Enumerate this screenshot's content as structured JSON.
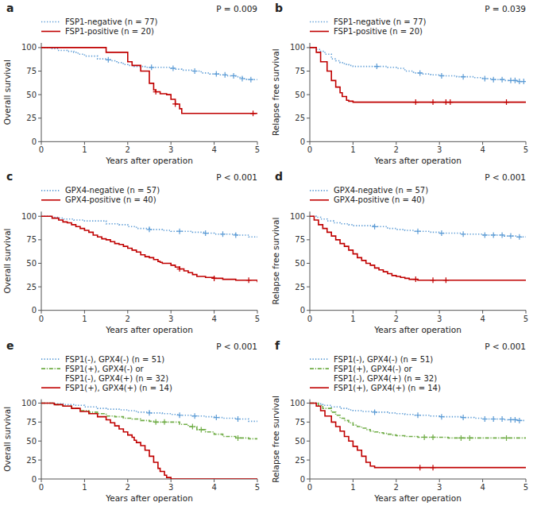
{
  "chart_data": [
    {
      "type": "step",
      "title": "a",
      "y_label": "Overall survival",
      "x_label": "Years after operation",
      "annotation": "P = 0.009",
      "xlim": [
        0,
        5
      ],
      "ylim": [
        0,
        105
      ],
      "xticks": [
        0,
        1,
        2,
        3,
        4,
        5
      ],
      "yticks": [
        0,
        25,
        50,
        75,
        100
      ],
      "grid": false,
      "legend": "top",
      "series": [
        {
          "name": "FSP1-negative (n = 77)",
          "color": "#5B9BD5",
          "line_style": "dotted",
          "x": [
            0,
            0.25,
            0.4,
            0.6,
            0.75,
            0.85,
            1.0,
            1.3,
            1.5,
            1.6,
            1.7,
            1.75,
            1.85,
            1.9,
            2.0,
            2.1,
            2.15,
            2.2,
            2.25,
            2.4,
            2.6,
            2.75,
            3.0,
            3.1,
            3.25,
            3.5,
            3.7,
            3.9,
            4.0,
            4.1,
            4.15,
            4.3,
            4.4,
            4.5,
            4.6,
            4.65,
            4.75,
            5.0
          ],
          "values": [
            100,
            99,
            97,
            96,
            95,
            93,
            91,
            88,
            87,
            86,
            85,
            84,
            83,
            82,
            81,
            81,
            80,
            80,
            80,
            79,
            79,
            79,
            78,
            77,
            76,
            75,
            73,
            72,
            72,
            71,
            71,
            70,
            70,
            69,
            68,
            67,
            66,
            65
          ],
          "censors": [
            1.55,
            2.55,
            3.05,
            3.55,
            4.05,
            4.25,
            4.45,
            4.65,
            4.85
          ]
        },
        {
          "name": "FSP1-positive (n = 20)",
          "color": "#C00000",
          "line_style": "solid",
          "x": [
            0,
            0.5,
            1.0,
            1.5,
            2.0,
            2.1,
            2.3,
            2.5,
            2.6,
            2.65,
            2.75,
            2.9,
            3.0,
            3.1,
            3.2,
            3.25,
            3.35,
            5.0
          ],
          "values": [
            100,
            100,
            100,
            95,
            85,
            81,
            75,
            62,
            55,
            53,
            51,
            50,
            45,
            40,
            35,
            30,
            30,
            30
          ],
          "censors": [
            2.65,
            3.1,
            4.9
          ]
        }
      ]
    },
    {
      "type": "step",
      "title": "b",
      "y_label": "Relapse free survival",
      "x_label": "Years after operation",
      "annotation": "P = 0.039",
      "xlim": [
        0,
        5
      ],
      "ylim": [
        0,
        105
      ],
      "xticks": [
        0,
        1,
        2,
        3,
        4,
        5
      ],
      "yticks": [
        0,
        25,
        50,
        75,
        100
      ],
      "grid": false,
      "legend": "top",
      "series": [
        {
          "name": "FSP1-negative (n = 77)",
          "color": "#5B9BD5",
          "line_style": "dotted",
          "x": [
            0,
            0.15,
            0.25,
            0.35,
            0.5,
            0.6,
            0.7,
            0.8,
            0.85,
            0.9,
            1.0,
            1.5,
            1.8,
            2.0,
            2.2,
            2.4,
            2.6,
            2.8,
            3.0,
            3.2,
            3.4,
            3.8,
            4.0,
            4.2,
            4.5,
            4.8,
            5.0
          ],
          "values": [
            100,
            98,
            96,
            93,
            88,
            86,
            84,
            83,
            82,
            81,
            80,
            80,
            79,
            78,
            75,
            73,
            72,
            71,
            70,
            70,
            69,
            68,
            67,
            66,
            65,
            64,
            64
          ],
          "censors": [
            1.55,
            2.55,
            3.05,
            3.55,
            4.05,
            4.25,
            4.45,
            4.65,
            4.75,
            4.85,
            4.95
          ]
        },
        {
          "name": "FSP1-positive (n = 20)",
          "color": "#C00000",
          "line_style": "solid",
          "x": [
            0,
            0.15,
            0.25,
            0.4,
            0.5,
            0.6,
            0.7,
            0.75,
            0.85,
            0.9,
            1.0,
            5.0
          ],
          "values": [
            100,
            95,
            85,
            75,
            65,
            58,
            52,
            48,
            44,
            43,
            42,
            42
          ],
          "censors": [
            2.45,
            2.85,
            3.15,
            3.25,
            4.55
          ]
        }
      ]
    },
    {
      "type": "step",
      "title": "c",
      "y_label": "Overall survival",
      "x_label": "Years after operation",
      "annotation": "P < 0.001",
      "xlim": [
        0,
        5
      ],
      "ylim": [
        0,
        105
      ],
      "xticks": [
        0,
        1,
        2,
        3,
        4,
        5
      ],
      "yticks": [
        0,
        25,
        50,
        75,
        100
      ],
      "grid": false,
      "legend": "top",
      "series": [
        {
          "name": "GPX4-negative (n = 57)",
          "color": "#5B9BD5",
          "line_style": "dotted",
          "x": [
            0,
            0.25,
            0.4,
            0.5,
            0.75,
            1.0,
            1.5,
            1.8,
            2.0,
            2.2,
            2.5,
            2.8,
            3.0,
            3.2,
            3.5,
            3.8,
            4.0,
            4.2,
            4.5,
            4.8,
            5.0
          ],
          "values": [
            100,
            99,
            98,
            97,
            96,
            95,
            92,
            91,
            89,
            87,
            86,
            85,
            84,
            84,
            83,
            82,
            81,
            81,
            80,
            78,
            77
          ],
          "censors": [
            2.5,
            3.2,
            3.8,
            4.2,
            4.5
          ]
        },
        {
          "name": "GPX4-positive (n = 40)",
          "color": "#C00000",
          "line_style": "solid",
          "x": [
            0,
            0.25,
            0.4,
            0.5,
            0.6,
            0.7,
            0.8,
            0.9,
            1.0,
            1.1,
            1.2,
            1.3,
            1.4,
            1.5,
            1.6,
            1.7,
            1.8,
            1.9,
            2.0,
            2.1,
            2.2,
            2.3,
            2.4,
            2.5,
            2.6,
            2.7,
            2.75,
            2.8,
            3.0,
            3.1,
            3.2,
            3.3,
            3.4,
            3.5,
            3.6,
            3.8,
            4.0,
            4.2,
            4.5,
            5.0
          ],
          "values": [
            100,
            98,
            96,
            94,
            93,
            91,
            89,
            87,
            85,
            83,
            80,
            78,
            76,
            75,
            73,
            71,
            70,
            68,
            66,
            64,
            62,
            59,
            57,
            56,
            54,
            52,
            51,
            50,
            48,
            46,
            44,
            42,
            40,
            38,
            36,
            35,
            34,
            33,
            32,
            30
          ],
          "censors": [
            3.2,
            4.0,
            4.8
          ]
        }
      ]
    },
    {
      "type": "step",
      "title": "d",
      "y_label": "Relapse free survival",
      "x_label": "Years after operation",
      "annotation": "P < 0.001",
      "xlim": [
        0,
        5
      ],
      "ylim": [
        0,
        105
      ],
      "xticks": [
        0,
        1,
        2,
        3,
        4,
        5
      ],
      "yticks": [
        0,
        25,
        50,
        75,
        100
      ],
      "grid": false,
      "legend": "top",
      "series": [
        {
          "name": "GPX4-negative (n = 57)",
          "color": "#5B9BD5",
          "line_style": "dotted",
          "x": [
            0,
            0.15,
            0.25,
            0.4,
            0.55,
            0.7,
            0.9,
            1.0,
            1.5,
            1.8,
            2.0,
            2.2,
            2.4,
            2.6,
            2.8,
            3.0,
            3.2,
            3.5,
            3.8,
            4.0,
            4.2,
            4.5,
            4.8,
            5.0
          ],
          "values": [
            100,
            99,
            97,
            95,
            93,
            92,
            91,
            90,
            89,
            87,
            86,
            85,
            84,
            84,
            83,
            82,
            82,
            81,
            81,
            80,
            80,
            79,
            78,
            78
          ],
          "censors": [
            1.5,
            2.5,
            3.05,
            3.55,
            4.05,
            4.25,
            4.45,
            4.65,
            4.85
          ]
        },
        {
          "name": "GPX4-positive (n = 40)",
          "color": "#C00000",
          "line_style": "solid",
          "x": [
            0,
            0.1,
            0.2,
            0.3,
            0.4,
            0.5,
            0.6,
            0.7,
            0.8,
            0.9,
            1.0,
            1.1,
            1.2,
            1.3,
            1.4,
            1.5,
            1.6,
            1.7,
            1.8,
            1.9,
            2.0,
            2.1,
            2.2,
            2.3,
            2.4,
            2.5,
            2.6,
            2.7,
            2.8,
            2.9,
            3.0,
            5.0
          ],
          "values": [
            100,
            96,
            91,
            87,
            83,
            79,
            75,
            71,
            68,
            64,
            60,
            56,
            53,
            50,
            48,
            45,
            43,
            41,
            39,
            37,
            36,
            35,
            34,
            33,
            33,
            32,
            32,
            32,
            32,
            32,
            32,
            32
          ],
          "censors": [
            2.45,
            2.85,
            3.15
          ]
        }
      ]
    },
    {
      "type": "step",
      "title": "e",
      "y_label": "Overall survival",
      "x_label": "Years after operation",
      "annotation": "P < 0.001",
      "xlim": [
        0,
        5
      ],
      "ylim": [
        0,
        105
      ],
      "xticks": [
        0,
        1,
        2,
        3,
        4,
        5
      ],
      "yticks": [
        0,
        25,
        50,
        75,
        100
      ],
      "grid": false,
      "legend": "top",
      "series": [
        {
          "name": "FSP1(-), GPX4(-) (n = 51)",
          "color": "#5B9BD5",
          "line_style": "dotted",
          "x": [
            0,
            0.3,
            0.5,
            0.8,
            1.0,
            1.3,
            1.5,
            1.8,
            2.0,
            2.2,
            2.5,
            2.8,
            3.0,
            3.2,
            3.5,
            3.8,
            4.0,
            4.2,
            4.5,
            4.8,
            5.0
          ],
          "values": [
            100,
            99,
            98,
            97,
            95,
            93,
            92,
            91,
            90,
            88,
            87,
            86,
            85,
            84,
            83,
            82,
            81,
            80,
            79,
            76,
            74
          ],
          "censors": [
            2.5,
            3.2,
            3.55,
            4.05,
            4.55
          ]
        },
        {
          "name": "FSP1(+), GPX4(-) or\nFSP1(-), GPX4(+) (n = 32)",
          "color": "#70AD47",
          "line_style": "dashdot",
          "x": [
            0,
            0.3,
            0.5,
            0.7,
            0.9,
            1.1,
            1.3,
            1.5,
            1.7,
            1.9,
            2.1,
            2.3,
            2.5,
            2.6,
            2.7,
            2.8,
            3.0,
            3.2,
            3.4,
            3.6,
            3.8,
            4.0,
            4.2,
            4.5,
            4.8,
            5.0
          ],
          "values": [
            100,
            98,
            96,
            93,
            90,
            88,
            86,
            83,
            82,
            80,
            79,
            77,
            76,
            75,
            75,
            75,
            75,
            72,
            69,
            65,
            62,
            59,
            56,
            54,
            53,
            52
          ],
          "censors": [
            2.65,
            2.85,
            3.5,
            3.7,
            4.55
          ]
        },
        {
          "name": "FSP1(+), GPX4(+) (n = 14)",
          "color": "#C00000",
          "line_style": "solid",
          "x": [
            0,
            0.3,
            0.5,
            0.7,
            0.9,
            1.1,
            1.3,
            1.5,
            1.6,
            1.7,
            1.8,
            1.9,
            2.0,
            2.1,
            2.15,
            2.2,
            2.3,
            2.4,
            2.5,
            2.6,
            2.7,
            2.75,
            2.85,
            2.9,
            3.0,
            3.1,
            3.2,
            3.35,
            3.45,
            5.0
          ],
          "values": [
            100,
            98,
            96,
            93,
            89,
            86,
            82,
            78,
            74,
            70,
            66,
            62,
            58,
            55,
            51,
            48,
            44,
            38,
            30,
            22,
            14,
            10,
            5,
            2,
            0,
            0,
            0,
            0,
            0,
            0
          ],
          "censors": []
        }
      ]
    },
    {
      "type": "step",
      "title": "f",
      "y_label": "Relapse free survival",
      "x_label": "Years after operation",
      "annotation": "P < 0.001",
      "xlim": [
        0,
        5
      ],
      "ylim": [
        0,
        105
      ],
      "xticks": [
        0,
        1,
        2,
        3,
        4,
        5
      ],
      "yticks": [
        0,
        25,
        50,
        75,
        100
      ],
      "grid": false,
      "legend": "top",
      "series": [
        {
          "name": "FSP1(-), GPX4(-) (n = 51)",
          "color": "#5B9BD5",
          "line_style": "dotted",
          "x": [
            0,
            0.15,
            0.3,
            0.5,
            0.7,
            0.9,
            1.0,
            1.2,
            1.5,
            1.8,
            2.0,
            2.2,
            2.4,
            2.6,
            2.8,
            3.0,
            3.2,
            3.5,
            3.8,
            4.0,
            4.2,
            4.5,
            4.8,
            5.0
          ],
          "values": [
            100,
            99,
            97,
            95,
            93,
            91,
            90,
            89,
            88,
            87,
            86,
            85,
            84,
            84,
            83,
            82,
            82,
            81,
            80,
            79,
            79,
            78,
            77,
            77
          ],
          "censors": [
            1.5,
            2.5,
            3.05,
            3.55,
            4.05,
            4.25,
            4.45,
            4.65,
            4.75,
            4.85
          ]
        },
        {
          "name": "FSP1(+), GPX4(-) or\nFSP1(-), GPX4(+) (n = 32)",
          "color": "#70AD47",
          "line_style": "dashdot",
          "x": [
            0,
            0.2,
            0.3,
            0.5,
            0.6,
            0.7,
            0.8,
            0.9,
            1.0,
            1.1,
            1.2,
            1.3,
            1.4,
            1.5,
            1.6,
            1.7,
            1.8,
            1.9,
            2.0,
            2.2,
            2.5,
            2.8,
            3.0,
            3.2,
            5.0
          ],
          "values": [
            100,
            97,
            93,
            88,
            84,
            80,
            77,
            74,
            71,
            69,
            67,
            65,
            63,
            62,
            61,
            60,
            59,
            58,
            57,
            56,
            55,
            55,
            55,
            54,
            54
          ],
          "censors": [
            2.65,
            2.85,
            3.5,
            3.7,
            4.55
          ]
        },
        {
          "name": "FSP1(+), GPX4(+) (n = 14)",
          "color": "#C00000",
          "line_style": "solid",
          "x": [
            0,
            0.15,
            0.25,
            0.35,
            0.5,
            0.6,
            0.7,
            0.8,
            0.9,
            1.0,
            1.1,
            1.2,
            1.3,
            1.4,
            1.5,
            2.5,
            2.8,
            5.0
          ],
          "values": [
            100,
            96,
            90,
            83,
            75,
            69,
            63,
            56,
            50,
            43,
            38,
            30,
            22,
            17,
            15,
            15,
            15,
            15
          ],
          "censors": [
            2.55,
            2.85
          ]
        }
      ]
    }
  ]
}
